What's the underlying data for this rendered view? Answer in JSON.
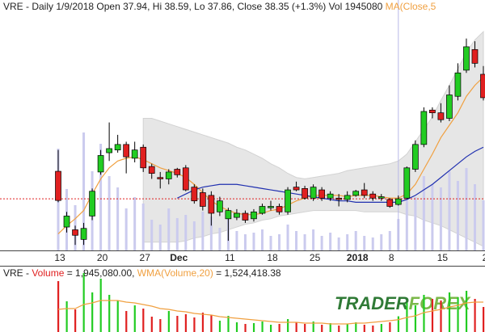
{
  "chart_data": [
    {
      "type": "candlestick",
      "legend_text": [
        "VRE - Daily 1/9/2018 Open 37.94, Hi 38.59, Lo 37.86, Close 38.35 (+1.3%) Vol 1945080 ",
        "MA(Close,5"
      ],
      "categories": [
        "13",
        null,
        null,
        null,
        null,
        "20",
        null,
        null,
        null,
        null,
        "27",
        null,
        null,
        null,
        "Dec",
        null,
        null,
        null,
        null,
        null,
        "11",
        null,
        null,
        null,
        null,
        "18",
        null,
        null,
        null,
        null,
        "25",
        null,
        null,
        null,
        null,
        "2018",
        null,
        null,
        null,
        "8",
        null,
        null,
        null,
        null,
        null,
        "15",
        null,
        null,
        null,
        null,
        "2"
      ],
      "open": [
        40.35,
        36.3,
        36.1,
        35.4,
        37.1,
        40.3,
        41.7,
        41.9,
        42.3,
        41.3,
        42.1,
        40.7,
        39.9,
        39.8,
        40.5,
        40.6,
        39.2,
        38.8,
        38.6,
        37.4,
        36.9,
        37.0,
        37.3,
        36.9,
        37.3,
        37.7,
        37.8,
        37.4,
        39.2,
        39.1,
        38.4,
        39.0,
        38.4,
        38.4,
        38.3,
        38.6,
        39.0,
        38.7,
        38.4,
        38.3,
        37.94,
        38.4,
        40.5,
        42.3,
        44.8,
        44.6,
        44.2,
        45.8,
        47.7,
        49.2,
        47.4
      ],
      "high": [
        41.9,
        37.4,
        36.4,
        36.6,
        39.1,
        41.9,
        43.9,
        43.0,
        42.5,
        42.5,
        42.3,
        40.9,
        40.3,
        40.5,
        40.6,
        40.8,
        39.4,
        39.1,
        38.9,
        38.5,
        37.7,
        37.6,
        37.5,
        37.6,
        38.0,
        38.2,
        38.0,
        39.2,
        39.6,
        39.3,
        39.4,
        39.2,
        38.9,
        38.7,
        38.9,
        39.0,
        39.5,
        38.9,
        38.7,
        38.4,
        38.59,
        40.7,
        42.6,
        45.0,
        45.0,
        45.3,
        46.6,
        48.2,
        50.0,
        49.8,
        48.0
      ],
      "low": [
        38.1,
        35.9,
        35.0,
        35.0,
        36.8,
        40.1,
        41.1,
        41.7,
        40.2,
        41.0,
        40.3,
        39.8,
        39.1,
        39.4,
        39.9,
        38.9,
        38.0,
        37.5,
        36.4,
        37.1,
        35.3,
        36.8,
        36.6,
        36.7,
        37.2,
        37.5,
        37.2,
        37.2,
        38.9,
        38.3,
        38.2,
        38.2,
        38.2,
        37.8,
        38.1,
        38.5,
        38.4,
        38.2,
        38.2,
        37.7,
        37.86,
        38.3,
        40.3,
        42.1,
        44.2,
        43.9,
        44.0,
        45.5,
        47.5,
        47.9,
        45.5
      ],
      "close": [
        38.23,
        37.1,
        35.7,
        36.2,
        38.9,
        41.5,
        42.0,
        42.3,
        41.4,
        41.9,
        40.6,
        40.2,
        39.8,
        40.3,
        40.1,
        39.0,
        38.2,
        37.8,
        37.3,
        38.2,
        37.5,
        37.3,
        36.8,
        37.4,
        37.8,
        37.8,
        37.4,
        39.0,
        39.0,
        38.4,
        39.2,
        38.4,
        38.7,
        38.3,
        38.6,
        38.9,
        38.6,
        38.4,
        38.5,
        37.8,
        38.35,
        40.6,
        42.3,
        44.7,
        44.6,
        44.1,
        45.9,
        47.5,
        49.4,
        48.2,
        45.7
      ],
      "up_color": "#22cc22",
      "down_color": "#e02020",
      "overlays": [
        {
          "color": "#f0a040",
          "values": [
            35.8,
            36.4,
            36.9,
            37.5,
            38.7,
            39.8,
            40.6,
            41.1,
            41.3,
            41.4,
            41.2,
            40.9,
            40.6,
            40.4,
            40.2,
            39.9,
            39.4,
            38.8,
            38.2,
            37.8,
            37.5,
            37.3,
            37.2,
            37.2,
            37.3,
            37.5,
            37.6,
            37.9,
            38.2,
            38.4,
            38.6,
            38.6,
            38.6,
            38.6,
            38.5,
            38.6,
            38.6,
            38.6,
            38.5,
            38.4,
            38.4,
            38.7,
            39.4,
            40.5,
            41.6,
            42.8,
            43.7,
            44.6,
            45.8,
            46.6,
            47.2
          ]
        },
        {
          "color": "#2030b0",
          "values": [
            null,
            null,
            null,
            null,
            null,
            null,
            null,
            null,
            null,
            null,
            null,
            null,
            null,
            null,
            38.4,
            38.7,
            39.0,
            39.2,
            39.3,
            39.4,
            39.4,
            39.4,
            39.3,
            39.2,
            39.1,
            39.0,
            38.9,
            38.8,
            38.7,
            38.6,
            38.5,
            38.4,
            38.3,
            38.2,
            38.2,
            38.1,
            38.1,
            38.1,
            38.1,
            38.1,
            38.1,
            38.3,
            38.6,
            39.0,
            39.4,
            39.9,
            40.4,
            40.9,
            41.4,
            41.8,
            42.1
          ]
        }
      ],
      "band": {
        "color": "#e6e6e6",
        "upper": [
          null,
          null,
          null,
          null,
          null,
          null,
          null,
          null,
          null,
          null,
          44.2,
          44.2,
          44.0,
          43.8,
          43.6,
          43.4,
          43.2,
          43.0,
          42.8,
          42.6,
          42.4,
          42.1,
          41.9,
          41.6,
          41.3,
          40.9,
          40.6,
          40.2,
          39.9,
          39.8,
          39.9,
          40.0,
          40.1,
          40.2,
          40.4,
          40.5,
          40.6,
          40.7,
          40.8,
          40.9,
          41.1,
          41.6,
          42.5,
          43.4,
          44.3,
          45.5,
          46.6,
          47.8,
          49.0,
          49.9,
          50.5
        ],
        "lower": [
          null,
          null,
          null,
          null,
          null,
          null,
          null,
          null,
          null,
          null,
          35.2,
          35.2,
          35.2,
          35.2,
          35.2,
          35.3,
          35.5,
          35.6,
          35.8,
          35.9,
          36.1,
          36.3,
          36.5,
          36.6,
          36.8,
          36.9,
          37.1,
          37.2,
          37.3,
          37.4,
          37.5,
          37.5,
          37.5,
          37.5,
          37.5,
          37.5,
          37.4,
          37.4,
          37.4,
          37.4,
          37.4,
          37.2,
          37.1,
          36.8,
          36.6,
          36.4,
          36.1,
          35.8,
          35.5,
          35.2,
          34.9
        ]
      },
      "crosshair": 40,
      "ylim": [
        34.6,
        52.8
      ]
    },
    {
      "type": "bar",
      "legend_text": [
        "VRE - ",
        "Volume",
        " = 1,945,080.00, ",
        "WMA(Volume,20)",
        " = 1,524,418.38"
      ],
      "values": [
        6300000,
        3800000,
        2800000,
        7300000,
        4900000,
        6600000,
        4600000,
        3900000,
        2600000,
        3300000,
        2900000,
        1900000,
        1600000,
        2600000,
        2000000,
        2200000,
        1800000,
        2400000,
        2100000,
        1400000,
        2000000,
        1200000,
        1000000,
        1100000,
        1300000,
        900000,
        1000000,
        1600000,
        1200000,
        1000000,
        1300000,
        900000,
        1100000,
        800000,
        1000000,
        1200000,
        900000,
        800000,
        1000000,
        1200000,
        1945080,
        3600000,
        3300000,
        4600000,
        4100000,
        3900000,
        4900000,
        4300000,
        5100000,
        4100000,
        3100000
      ],
      "wma": {
        "color": "#f0a040",
        "values": [
          2800000,
          2900000,
          2900000,
          3400000,
          3600000,
          3900000,
          3900000,
          3900000,
          3700000,
          3600000,
          3400000,
          3200000,
          2900000,
          2800000,
          2600000,
          2500000,
          2300000,
          2200000,
          2100000,
          1900000,
          1800000,
          1700000,
          1600000,
          1500000,
          1400000,
          1300000,
          1200000,
          1200000,
          1200000,
          1100000,
          1100000,
          1100000,
          1000000,
          1000000,
          1000000,
          1100000,
          1100000,
          1200000,
          1300000,
          1400000,
          1524418.38,
          1800000,
          2000000,
          2400000,
          2600000,
          2800000,
          3100000,
          3300000,
          3600000,
          3700000,
          3700000
        ]
      },
      "shadow_color": "#cbcbee",
      "ylim": [
        0,
        7600000
      ]
    }
  ],
  "watermark": [
    "TRADER",
    "FOREX"
  ]
}
